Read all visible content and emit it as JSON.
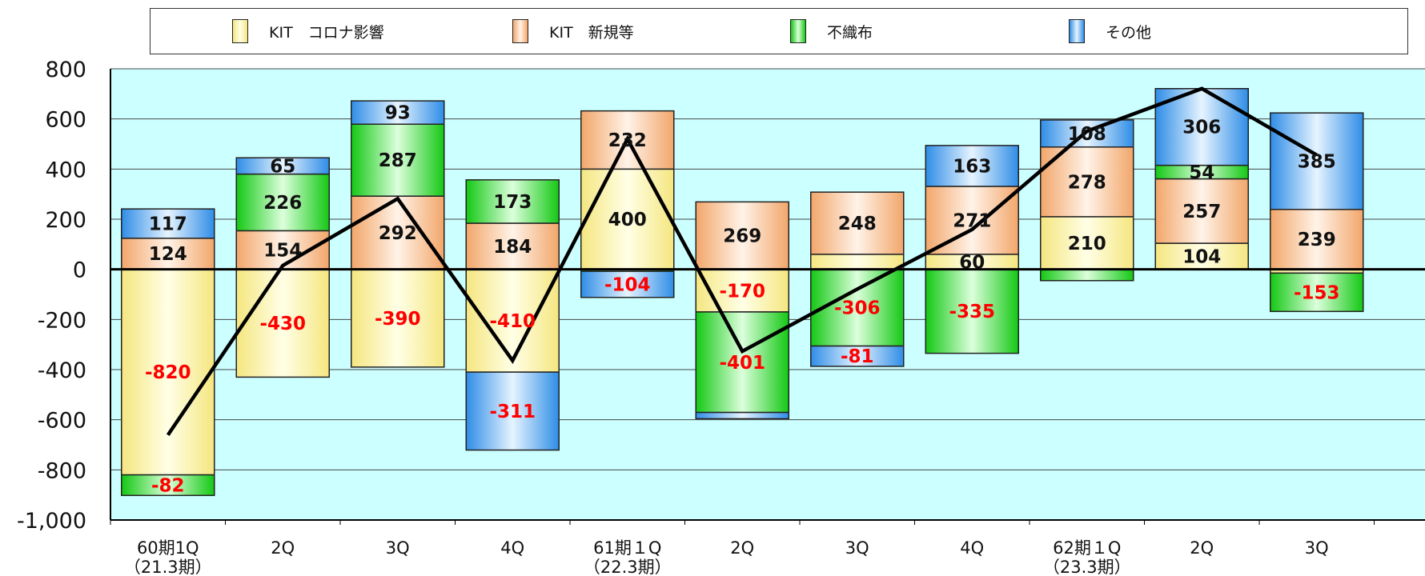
{
  "legend": [
    {
      "label": "KIT　コロナ影響",
      "color": "#fff8a8"
    },
    {
      "label": "KIT　新規等",
      "color": "#f9c9a0"
    },
    {
      "label": "不織布",
      "color": "#2ee32e"
    },
    {
      "label": "その他",
      "color": "#5aa8f0"
    }
  ],
  "chart_data": {
    "type": "bar",
    "stacked": true,
    "categories": [
      [
        "60期1Q",
        "（21.3期）"
      ],
      [
        "2Q"
      ],
      [
        "3Q"
      ],
      [
        "4Q"
      ],
      [
        "61期１Q",
        "（22.3期）"
      ],
      [
        "2Q"
      ],
      [
        "3Q"
      ],
      [
        "4Q"
      ],
      [
        "62期１Q",
        "（23.3期）"
      ],
      [
        "2Q"
      ],
      [
        "3Q"
      ]
    ],
    "y_ticks": [
      "800",
      "600",
      "400",
      "200",
      "0",
      "-200",
      "-400",
      "-600",
      "-800",
      "-1,000"
    ],
    "ylim": [
      -1000,
      800
    ],
    "series": [
      {
        "name": "KIT　コロナ影響",
        "color": "#fff8a8",
        "values": [
          -820,
          -430,
          -390,
          -410,
          400,
          -170,
          60,
          60,
          210,
          104,
          -15
        ],
        "labels": [
          "-820",
          "-430",
          "-390",
          "-410",
          "400",
          "-170",
          "",
          "60",
          "210",
          "104",
          ""
        ]
      },
      {
        "name": "KIT　新規等",
        "color": "#f9c9a0",
        "values": [
          124,
          154,
          292,
          184,
          232,
          269,
          248,
          271,
          278,
          257,
          239
        ],
        "labels": [
          "124",
          "154",
          "292",
          "184",
          "232",
          "269",
          "248",
          "271",
          "278",
          "257",
          "239"
        ]
      },
      {
        "name": "不織布",
        "color": "#2ee32e",
        "values": [
          -82,
          226,
          287,
          173,
          -8,
          -401,
          -306,
          -335,
          -45,
          54,
          -153
        ],
        "labels": [
          "-82",
          "226",
          "287",
          "173",
          "",
          "-401",
          "-306",
          "-335",
          "",
          "54",
          "-153"
        ]
      },
      {
        "name": "その他",
        "color": "#5aa8f0",
        "values": [
          117,
          65,
          93,
          -311,
          -104,
          -25,
          -81,
          163,
          108,
          306,
          385
        ],
        "labels": [
          "117",
          "65",
          "93",
          "-311",
          "-104",
          "",
          "-81",
          "163",
          "108",
          "306",
          "385"
        ]
      }
    ],
    "line": [
      -661,
      15,
      282,
      -364,
      520,
      -327,
      -79,
      159,
      551,
      721,
      456
    ],
    "grid": true,
    "plot_background": "#ccffff",
    "label_colors": {
      "positive": "#111111",
      "negative": "#ff0000"
    }
  }
}
